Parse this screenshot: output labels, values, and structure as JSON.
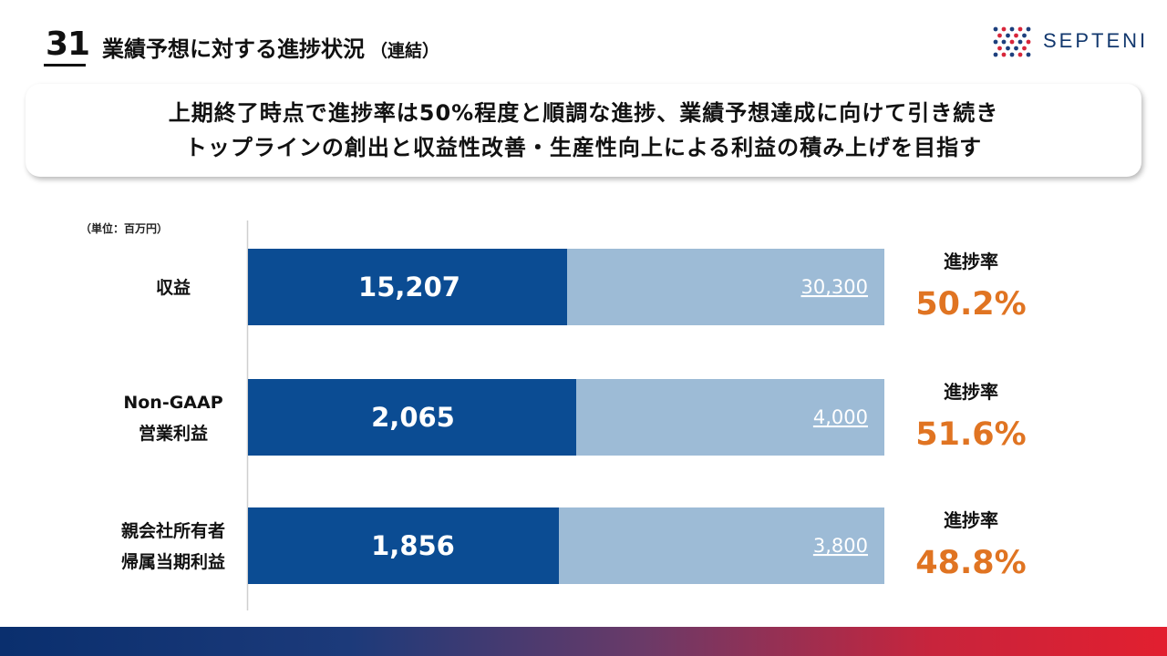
{
  "header": {
    "slide_number": "31",
    "title": "業績予想に対する進捗状況",
    "title_sub": "（連結）",
    "logo_text": "SEPTENI"
  },
  "message": {
    "line1": "上期終了時点で進捗率は50%程度と順調な進捗、業績予想達成に向けて引き続き",
    "line2": "トップラインの創出と収益性改善・生産性向上による利益の積み上げを目指す"
  },
  "unit_label": "（単位：百万円）",
  "colors": {
    "actual": "#0b4c93",
    "forecast": "#9dbbd6",
    "rate": "#e07422",
    "text_dark": "#111111"
  },
  "chart_data": {
    "type": "bar",
    "orientation": "horizontal",
    "stacked": false,
    "unit": "百万円",
    "categories": [
      [
        "収益"
      ],
      [
        "Non-GAAP",
        "営業利益"
      ],
      [
        "親会社所有者",
        "帰属当期利益"
      ]
    ],
    "series": [
      {
        "name": "",
        "values": [
          15207,
          2065,
          1856
        ],
        "labels": [
          "15,207",
          "2,065",
          "1,856"
        ]
      },
      {
        "name": "",
        "values": [
          30300,
          4000,
          3800
        ],
        "labels": [
          "30,300",
          "4,000",
          "3,800"
        ]
      }
    ],
    "progress_label": "進捗率",
    "progress_rates": [
      "50.2%",
      "51.6%",
      "48.8%"
    ],
    "progress_values": [
      50.2,
      51.6,
      48.8
    ]
  }
}
